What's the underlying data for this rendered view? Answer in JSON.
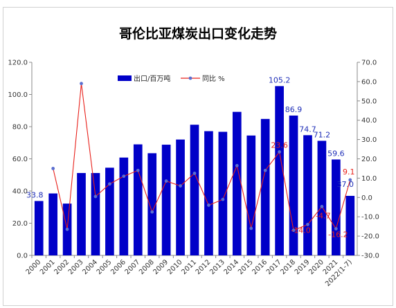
{
  "chart_data": {
    "type": "bar",
    "title": "哥伦比亚煤炭出口变化走势",
    "categories": [
      "2000",
      "2001",
      "2002",
      "2003",
      "2004",
      "2005",
      "2006",
      "2007",
      "2008",
      "2009",
      "2010",
      "2011",
      "2012",
      "2013",
      "2014",
      "2015",
      "2016",
      "2017",
      "2018",
      "2019",
      "2020",
      "2021",
      "2022(1-7)"
    ],
    "series": [
      {
        "name": "出口/百万吨",
        "type": "bar",
        "axis": "left",
        "color": "#0000c8",
        "values": [
          33.8,
          38.5,
          32.2,
          51.2,
          51.2,
          54.5,
          60.8,
          69.0,
          63.5,
          68.8,
          72.0,
          81.2,
          77.2,
          76.8,
          89.2,
          74.5,
          84.8,
          105.2,
          86.9,
          74.7,
          71.2,
          59.6,
          37.0
        ]
      },
      {
        "name": "同比 %",
        "type": "line",
        "axis": "right",
        "color": "#e8201a",
        "marker_color": "#5b6fd0",
        "values": [
          null,
          15.0,
          -16.5,
          59.0,
          0.5,
          7.0,
          11.0,
          14.0,
          -7.5,
          8.5,
          6.0,
          12.5,
          -4.0,
          -1.0,
          16.5,
          -16.0,
          14.0,
          23.6,
          -17.0,
          -14.0,
          -4.7,
          -16.2,
          9.1
        ]
      }
    ],
    "left_axis": {
      "min": 0,
      "max": 120,
      "step": 20,
      "ticks": [
        "0.0",
        "20.0",
        "40.0",
        "60.0",
        "80.0",
        "100.0",
        "120.0"
      ]
    },
    "right_axis": {
      "min": -30,
      "max": 70,
      "step": 10,
      "ticks": [
        "-30.0",
        "-20.0",
        "-10.0",
        "0.0",
        "10.0",
        "20.0",
        "30.0",
        "40.0",
        "50.0",
        "60.0",
        "70.0"
      ]
    },
    "bar_labels": [
      {
        "index": 0,
        "text": "33.8"
      },
      {
        "index": 17,
        "text": "105.2"
      },
      {
        "index": 18,
        "text": "86.9"
      },
      {
        "index": 19,
        "text": "74.7"
      },
      {
        "index": 20,
        "text": "71.2"
      },
      {
        "index": 21,
        "text": "59.6"
      },
      {
        "index": 22,
        "text": "37.0"
      }
    ],
    "line_labels": [
      {
        "index": 17,
        "text": "23.6"
      },
      {
        "index": 19,
        "text": "-14.0"
      },
      {
        "index": 20,
        "text": "-4.7"
      },
      {
        "index": 21,
        "text": "-16.2"
      },
      {
        "index": 22,
        "text": "9.1"
      }
    ],
    "legend": {
      "position": "top-left",
      "items": [
        "出口/百万吨",
        "同比 %"
      ]
    },
    "grid": false
  }
}
